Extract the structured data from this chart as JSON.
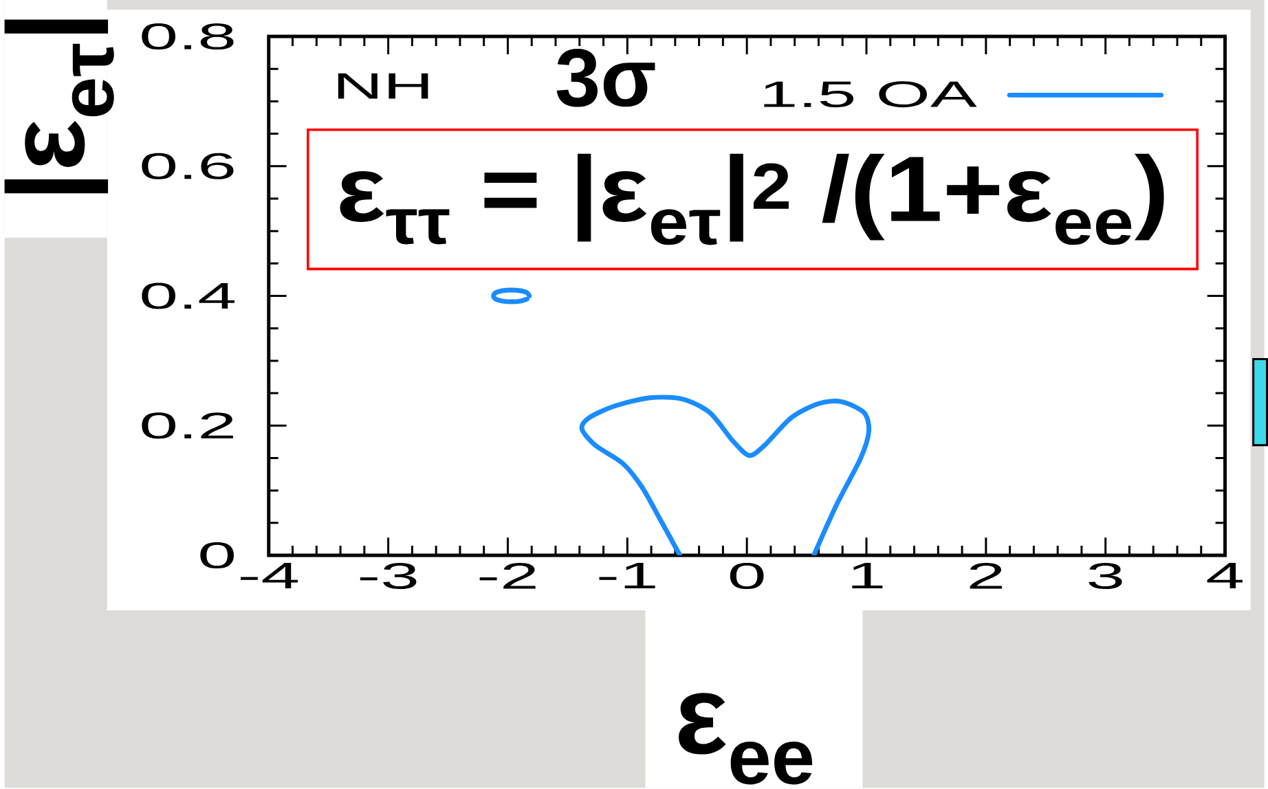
{
  "chart_data": {
    "type": "line",
    "xlabel": "ε$_{ee}$",
    "ylabel": "|ε$_{eτ}$|",
    "annotations": [
      "NH",
      "3σ",
      "ε$_{ττ}$ = |ε$_{eτ}$|$^{2}$ /(1+ε$_{ee}$)"
    ],
    "xlim": [
      -4,
      4
    ],
    "ylim": [
      0,
      0.8
    ],
    "xticks": [
      -4,
      -3,
      -2,
      -1,
      0,
      1,
      2,
      3,
      4
    ],
    "yticks": [
      0,
      0.2,
      0.4,
      0.6,
      0.8
    ],
    "series": [
      {
        "name": "1.5 OA",
        "color": "#1a8cff",
        "x": [
          -0.56,
          -0.73,
          -0.88,
          -1.04,
          -1.27,
          -1.38,
          -1.32,
          -1.11,
          -0.81,
          -0.54,
          -0.31,
          -0.12,
          0.02,
          0.15,
          0.37,
          0.6,
          0.79,
          0.98,
          1.02,
          0.95,
          0.75,
          0.56
        ],
        "values": [
          0.0,
          0.057,
          0.106,
          0.142,
          0.17,
          0.195,
          0.212,
          0.23,
          0.243,
          0.241,
          0.22,
          0.177,
          0.154,
          0.17,
          0.212,
          0.234,
          0.237,
          0.22,
          0.191,
          0.149,
          0.078,
          0.0
        ]
      },
      {
        "color": "#1a8cff",
        "x": [
          -1.82,
          -1.84,
          -1.895,
          -1.97,
          -2.045,
          -2.1,
          -2.12,
          -2.1,
          -2.045,
          -1.97,
          -1.895,
          -1.84
        ],
        "values": [
          0.4,
          0.405,
          0.408,
          0.409,
          0.408,
          0.405,
          0.4,
          0.395,
          0.392,
          0.391,
          0.392,
          0.395
        ]
      }
    ],
    "legend": "top right",
    "marker": "none",
    "line_style": "solid"
  }
}
